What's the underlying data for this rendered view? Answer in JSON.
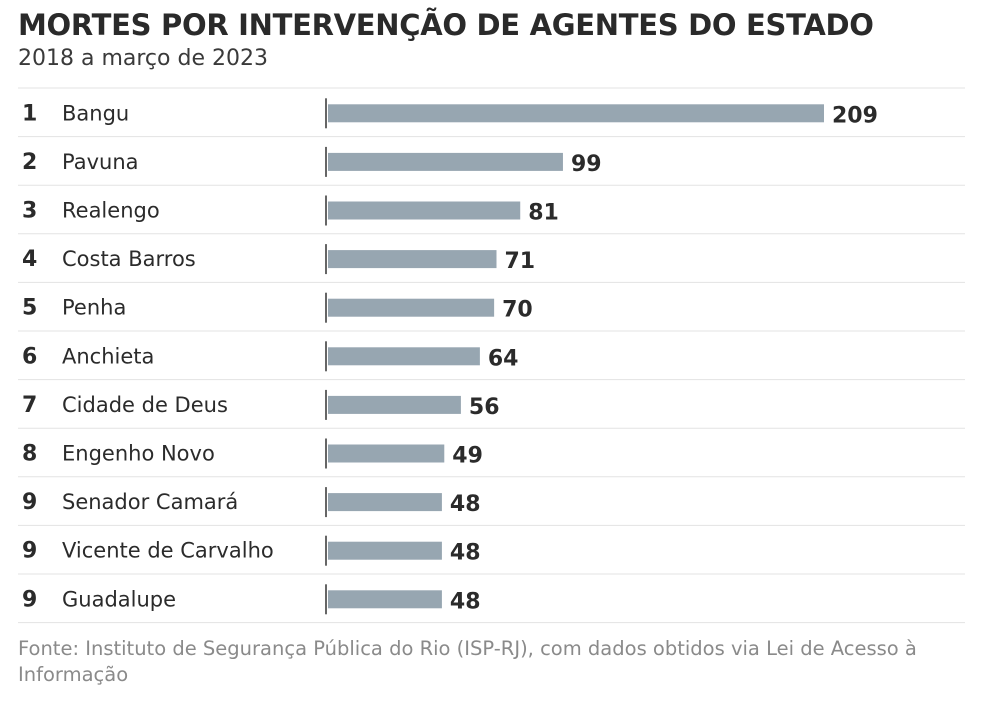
{
  "title": "MORTES POR INTERVENÇÃO DE AGENTES DO ESTADO",
  "subtitle": "2018 a março de 2023",
  "source": "Fonte: Instituto de Segurança Pública do Rio (ISP-RJ), com dados obtidos via Lei de Acesso à Informação",
  "colors": {
    "bar": "#97a6b1",
    "text": "#2b2b2b",
    "divider": "#e3e3e3",
    "axis": "#333333"
  },
  "chart_data": {
    "type": "bar",
    "orientation": "horizontal",
    "ranks": [
      "1",
      "2",
      "3",
      "4",
      "5",
      "6",
      "7",
      "8",
      "9",
      "9",
      "9"
    ],
    "categories": [
      "Bangu",
      "Pavuna",
      "Realengo",
      "Costa Barros",
      "Penha",
      "Anchieta",
      "Cidade de Deus",
      "Engenho Novo",
      "Senador Camará",
      "Vicente de Carvalho",
      "Guadalupe"
    ],
    "values": [
      209,
      99,
      81,
      71,
      70,
      64,
      56,
      49,
      48,
      48,
      48
    ],
    "title": "MORTES POR INTERVENÇÃO DE AGENTES DO ESTADO",
    "subtitle": "2018 a março de 2023",
    "xlim": [
      0,
      209
    ],
    "grid": false,
    "data_labels": true
  }
}
